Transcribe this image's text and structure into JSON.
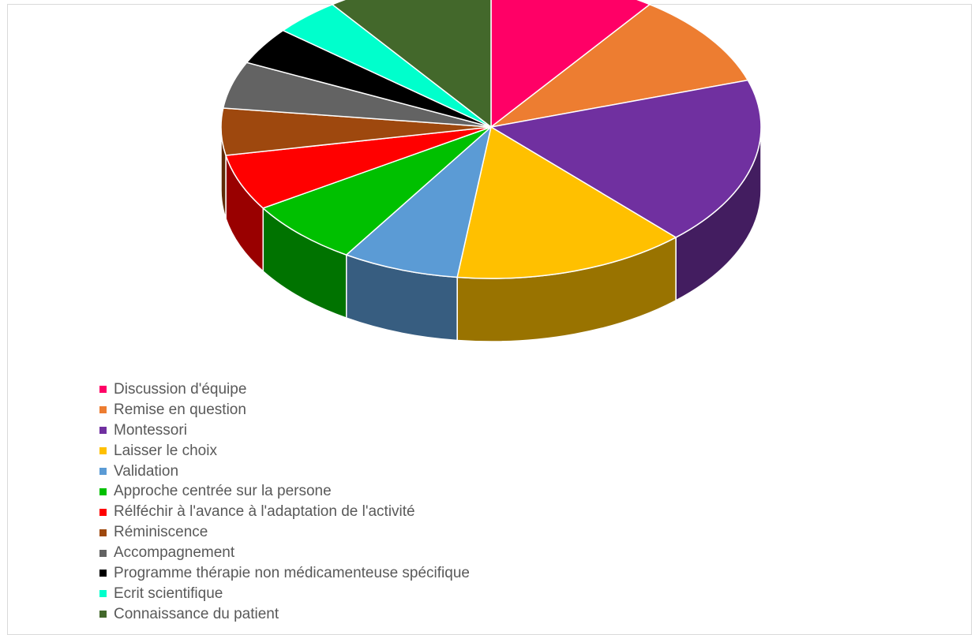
{
  "chart_data": {
    "type": "pie",
    "style": "3d",
    "title": "",
    "legend_position": "bottom-left",
    "slices": [
      {
        "label": "Discussion d'équipe",
        "value": 10,
        "color": "#FF0066"
      },
      {
        "label": "Remise en question",
        "value": 10,
        "color": "#ED7D31"
      },
      {
        "label": "Montessori",
        "value": 18,
        "color": "#7030A0"
      },
      {
        "label": "Laisser le choix",
        "value": 14,
        "color": "#FFC000"
      },
      {
        "label": "Validation",
        "value": 7,
        "color": "#5B9BD5"
      },
      {
        "label": "Approche centrée sur la persone",
        "value": 7,
        "color": "#00C000"
      },
      {
        "label": "Rélféchir à l'avance à l'adaptation de l'activité",
        "value": 6,
        "color": "#FF0000"
      },
      {
        "label": "Réminiscence",
        "value": 5,
        "color": "#9E480E"
      },
      {
        "label": "Accompagnement",
        "value": 5,
        "color": "#636363"
      },
      {
        "label": "Programme thérapie non médicamenteuse spécifique",
        "value": 4,
        "color": "#000000"
      },
      {
        "label": "Ecrit scientifique",
        "value": 4,
        "color": "#00FFCC"
      },
      {
        "label": "Connaissance du patient",
        "value": 10,
        "color": "#43682B"
      }
    ]
  }
}
